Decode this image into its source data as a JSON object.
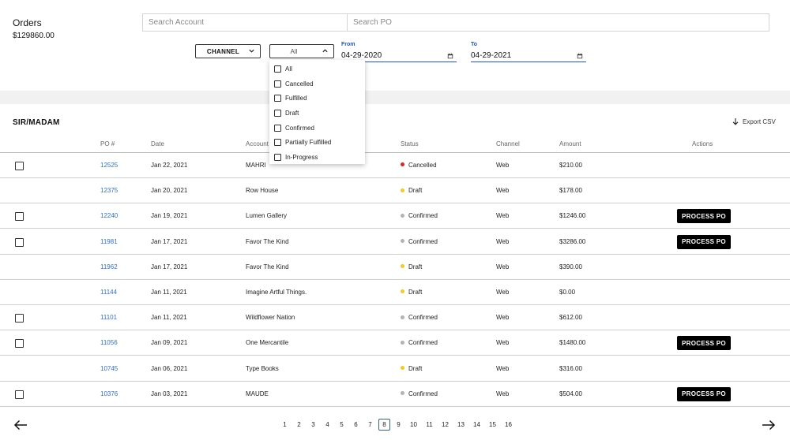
{
  "header": {
    "title": "Orders",
    "total": "$129860.00"
  },
  "search": {
    "account_placeholder": "Search Account",
    "po_placeholder": "Search PO"
  },
  "filters": {
    "channel_label": "CHANNEL",
    "status_value": "All",
    "from_label": "From",
    "from_value": "04-29-2020",
    "to_label": "To",
    "to_value": "04-29-2021"
  },
  "status_options": [
    "All",
    "Cancelled",
    "Fulfilled",
    "Draft",
    "Confirmed",
    "Partially Fulfilled",
    "In-Progress"
  ],
  "section": {
    "title": "SIR/MADAM",
    "export_label": "Export CSV"
  },
  "columns": [
    "PO #",
    "Date",
    "Account",
    "Status",
    "Channel",
    "Amount",
    "Actions"
  ],
  "status_colors": {
    "Cancelled": "#e02424",
    "Draft": "#f2cc1f",
    "Confirmed": "#b3b3b3"
  },
  "process_label": "PROCESS PO",
  "rows": [
    {
      "checkbox": true,
      "po": "12525",
      "date": "Jan 22, 2021",
      "account": "MAHRI",
      "status": "Cancelled",
      "channel": "Web",
      "amount": "$210.00",
      "action": false
    },
    {
      "checkbox": false,
      "po": "12375",
      "date": "Jan 20, 2021",
      "account": "Row House",
      "status": "Draft",
      "channel": "Web",
      "amount": "$178.00",
      "action": false
    },
    {
      "checkbox": true,
      "po": "12240",
      "date": "Jan 19, 2021",
      "account": "Lumen Gallery",
      "status": "Confirmed",
      "channel": "Web",
      "amount": "$1246.00",
      "action": true
    },
    {
      "checkbox": true,
      "po": "11981",
      "date": "Jan 17, 2021",
      "account": "Favor The Kind",
      "status": "Confirmed",
      "channel": "Web",
      "amount": "$3286.00",
      "action": true
    },
    {
      "checkbox": false,
      "po": "11962",
      "date": "Jan 17, 2021",
      "account": "Favor The Kind",
      "status": "Draft",
      "channel": "Web",
      "amount": "$390.00",
      "action": false
    },
    {
      "checkbox": false,
      "po": "11144",
      "date": "Jan 11, 2021",
      "account": "Imagine Artful Things.",
      "status": "Draft",
      "channel": "Web",
      "amount": "$0.00",
      "action": false
    },
    {
      "checkbox": true,
      "po": "11101",
      "date": "Jan 11, 2021",
      "account": "Wildflower Nation",
      "status": "Confirmed",
      "channel": "Web",
      "amount": "$612.00",
      "action": false
    },
    {
      "checkbox": true,
      "po": "11056",
      "date": "Jan 09, 2021",
      "account": "One Mercantile",
      "status": "Confirmed",
      "channel": "Web",
      "amount": "$1480.00",
      "action": true
    },
    {
      "checkbox": false,
      "po": "10745",
      "date": "Jan 06, 2021",
      "account": "Type Books",
      "status": "Draft",
      "channel": "Web",
      "amount": "$316.00",
      "action": false
    },
    {
      "checkbox": true,
      "po": "10376",
      "date": "Jan 03, 2021",
      "account": "MAUDE",
      "status": "Confirmed",
      "channel": "Web",
      "amount": "$504.00",
      "action": true
    }
  ],
  "pagination": {
    "pages": [
      "1",
      "2",
      "3",
      "4",
      "5",
      "6",
      "7",
      "8",
      "9",
      "10",
      "11",
      "12",
      "13",
      "14",
      "15",
      "16"
    ],
    "current": "8"
  }
}
